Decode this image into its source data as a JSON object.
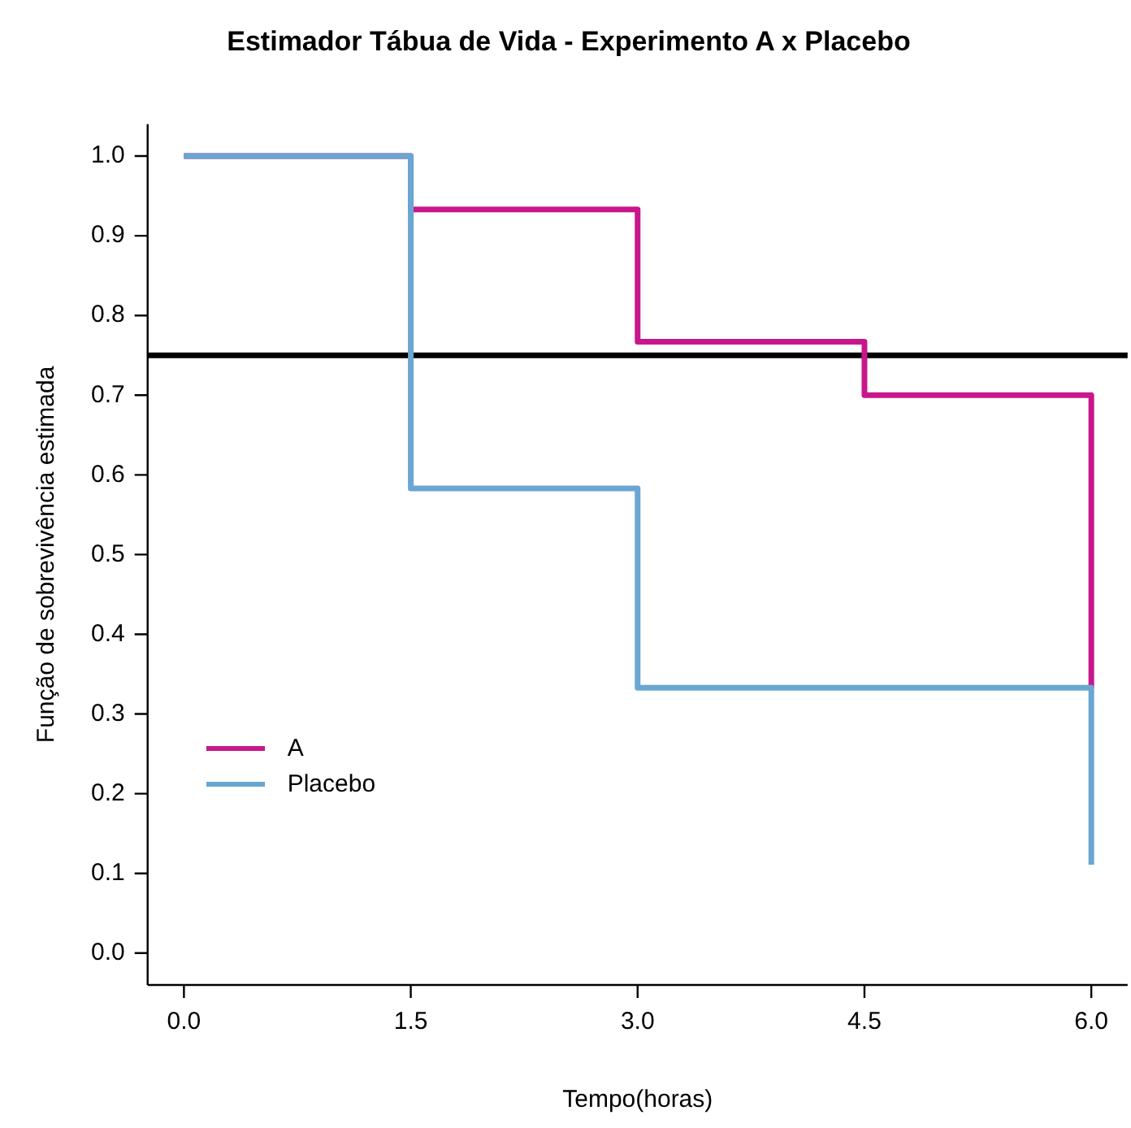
{
  "chart_data": {
    "type": "step",
    "title": "Estimador Tábua de Vida - Experimento A x Placebo",
    "xlabel": "Tempo(horas)",
    "ylabel": "Função de sobrevivência estimada",
    "x": [
      0,
      1.5,
      3,
      4.5,
      6
    ],
    "series": [
      {
        "name": "A",
        "color": "#c8178c",
        "values": [
          1,
          0.933,
          0.767,
          0.7,
          0.333
        ]
      },
      {
        "name": "Placebo",
        "color": "#6aa6d2",
        "values": [
          1,
          0.583,
          0.333,
          0.333,
          0.111
        ]
      }
    ],
    "xlim": [
      -0.24,
      6.24
    ],
    "xticks": [
      {
        "value": 0,
        "label": "0.0"
      },
      {
        "value": 1.5,
        "label": "1.5"
      },
      {
        "value": 3,
        "label": "3.0"
      },
      {
        "value": 4.5,
        "label": "4.5"
      },
      {
        "value": 6,
        "label": "6.0"
      }
    ],
    "ylim": [
      -0.04,
      1.04
    ],
    "yticks": [
      {
        "value": 0,
        "label": "0.0"
      },
      {
        "value": 0.1,
        "label": "0.1"
      },
      {
        "value": 0.2,
        "label": "0.2"
      },
      {
        "value": 0.3,
        "label": "0.3"
      },
      {
        "value": 0.4,
        "label": "0.4"
      },
      {
        "value": 0.5,
        "label": "0.5"
      },
      {
        "value": 0.6,
        "label": "0.6"
      },
      {
        "value": 0.7,
        "label": "0.7"
      },
      {
        "value": 0.8,
        "label": "0.8"
      },
      {
        "value": 0.9,
        "label": "0.9"
      },
      {
        "value": 1,
        "label": "1.0"
      }
    ],
    "ref_lines": [
      {
        "axis": "y",
        "value": 0.75,
        "color": "#000000"
      }
    ],
    "grid": false,
    "legend": "left",
    "line_style": "solid",
    "marker": "none"
  }
}
